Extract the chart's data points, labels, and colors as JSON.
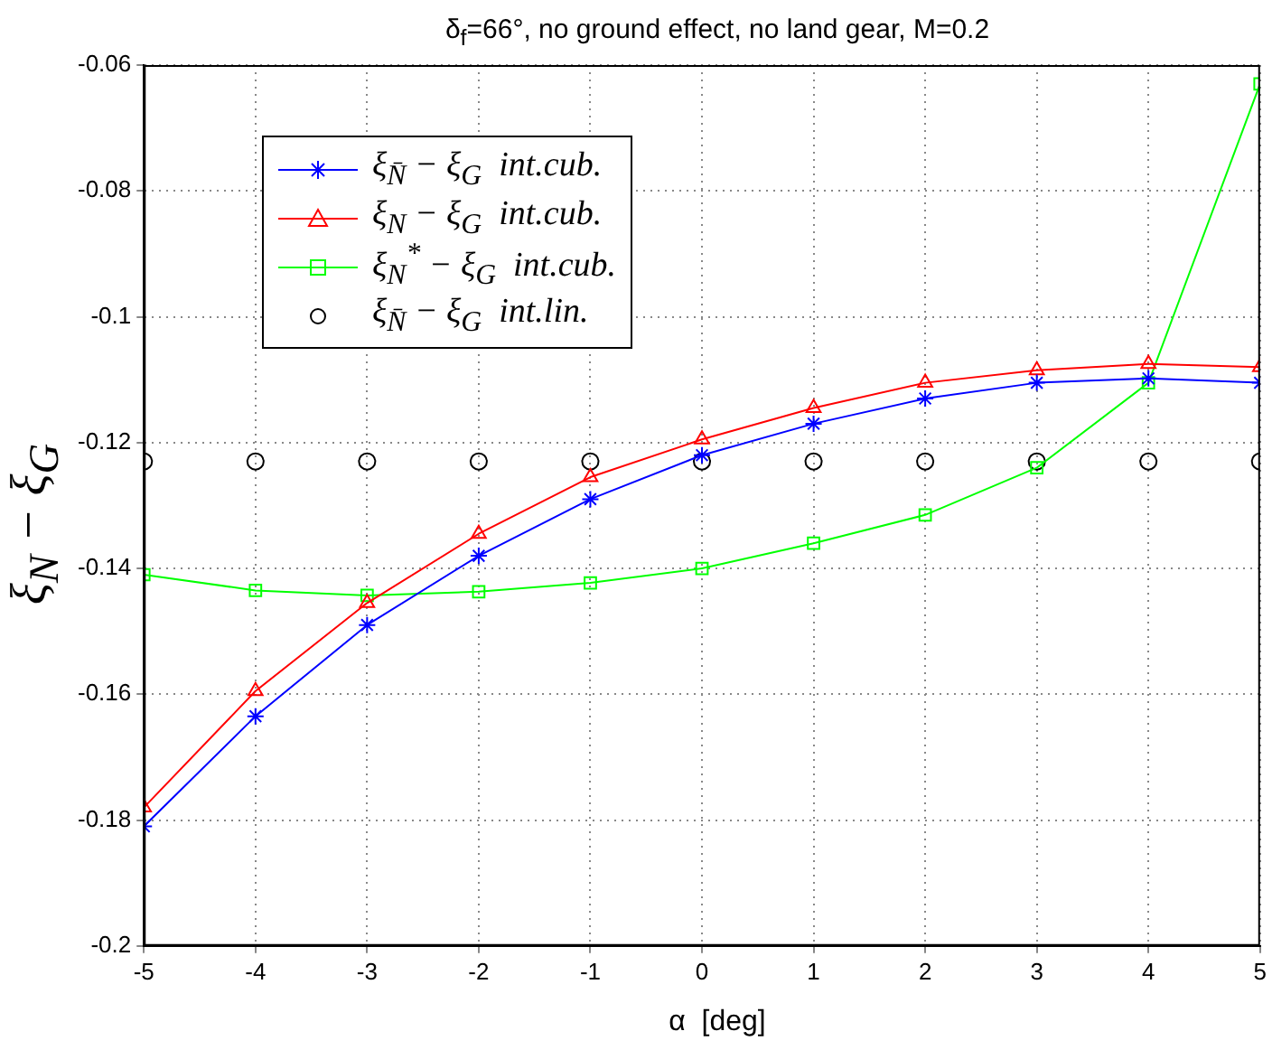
{
  "chart_data": {
    "type": "line",
    "title": "δ$_{f}$=66°, no ground effect, no land gear, M=0.2",
    "xlabel": "α  [deg]",
    "ylabel": "ξ$_{N}$ − ξ$_{G}$",
    "x": [
      -5,
      -4,
      -3,
      -2,
      -1,
      0,
      1,
      2,
      3,
      4,
      5
    ],
    "series": [
      {
        "name": "ξ$_{N̄}$ − ξ$_{G}$  int.cub.",
        "color": "#0000ff",
        "marker": "cross",
        "values": [
          -0.181,
          -0.1635,
          -0.149,
          -0.138,
          -0.129,
          -0.122,
          -0.117,
          -0.113,
          -0.1105,
          -0.1098,
          -0.1105
        ]
      },
      {
        "name": "ξ$_{N}$ − ξ$_{G}$  int.cub.",
        "color": "#ff0000",
        "marker": "triangle",
        "values": [
          -0.178,
          -0.1595,
          -0.1455,
          -0.1345,
          -0.1255,
          -0.1195,
          -0.1145,
          -0.1105,
          -0.1085,
          -0.1075,
          -0.108
        ]
      },
      {
        "name": "ξ$_{N}$$^{*}$ − ξ$_{G}$  int.cub.",
        "color": "#00ff00",
        "marker": "square",
        "values": [
          -0.141,
          -0.1435,
          -0.1443,
          -0.1437,
          -0.1423,
          -0.14,
          -0.136,
          -0.1315,
          -0.124,
          -0.1105,
          -0.063
        ]
      },
      {
        "name": "ξ$_{N̄}$ − ξ$_{G}$  int.lin.",
        "color": "#000000",
        "marker": "circle",
        "type": "scatter",
        "values": [
          -0.123,
          -0.123,
          -0.123,
          -0.123,
          -0.123,
          -0.123,
          -0.123,
          -0.123,
          -0.123,
          -0.123,
          -0.123
        ]
      }
    ],
    "xlim": [
      -5,
      5
    ],
    "xticks": [
      -5,
      -4,
      -3,
      -2,
      -1,
      0,
      1,
      2,
      3,
      4,
      5
    ],
    "ylim": [
      -0.2,
      -0.06
    ],
    "yticks": [
      -0.2,
      -0.18,
      -0.16,
      -0.14,
      -0.12,
      -0.1,
      -0.08,
      -0.06
    ],
    "grid": true,
    "legend": "top left"
  }
}
